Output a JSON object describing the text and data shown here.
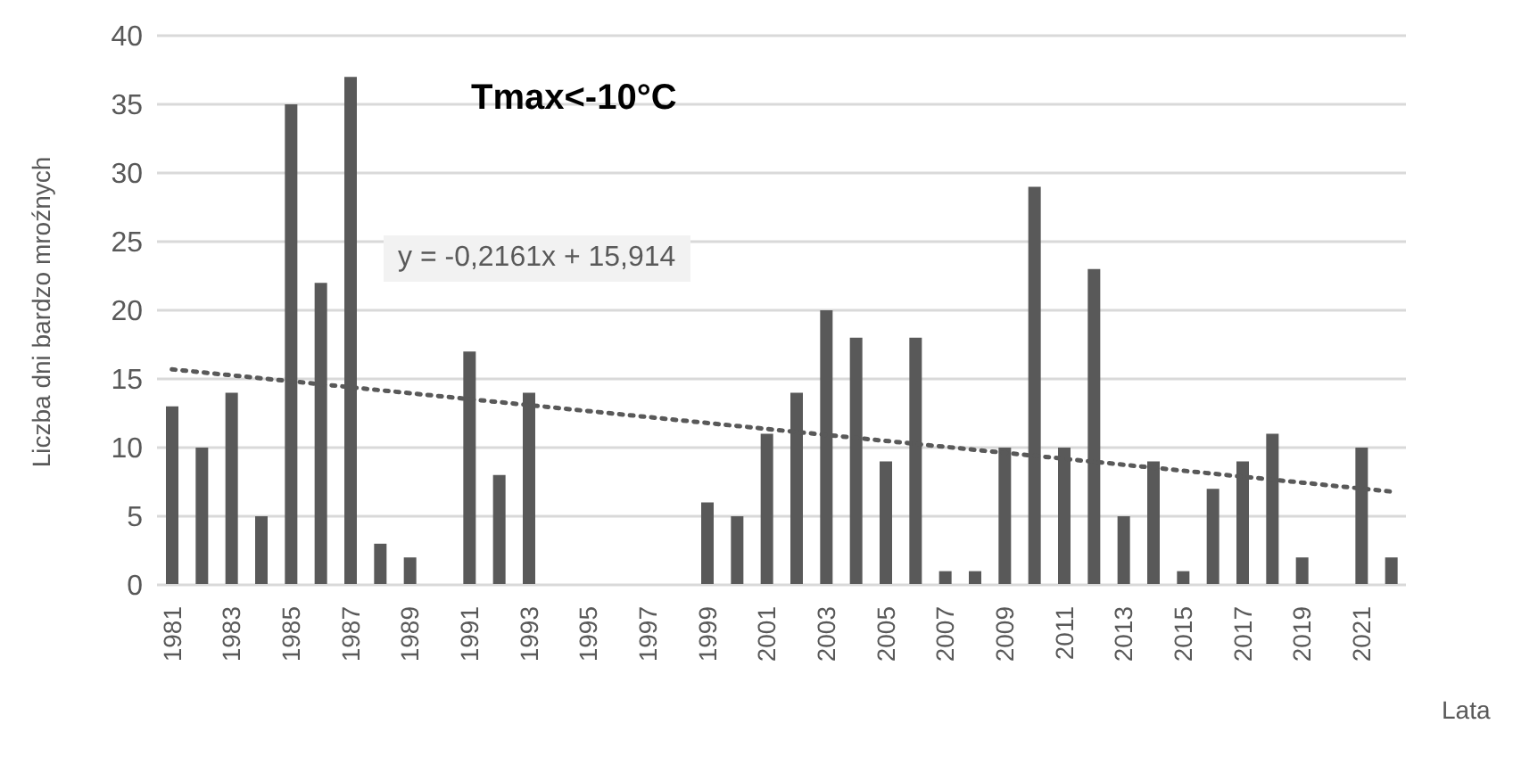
{
  "chart_data": {
    "type": "bar",
    "title": "Tmax<-10°C",
    "xlabel": "Lata",
    "ylabel": "Liczba dni bardzo mroźnych",
    "annotations": [
      "y = -0,2161x + 15,914"
    ],
    "categories": [
      "1981",
      null,
      "1983",
      null,
      "1985",
      null,
      "1987",
      null,
      "1989",
      null,
      "1991",
      null,
      "1993",
      null,
      "1995",
      null,
      "1997",
      null,
      "1999",
      null,
      "2001",
      null,
      "2003",
      null,
      "2005",
      null,
      "2007",
      null,
      "2009",
      null,
      "2011",
      null,
      "2013",
      null,
      "2015",
      null,
      "2017",
      null,
      "2019",
      null,
      "2021",
      null
    ],
    "series": [
      {
        "color": "#595959",
        "values": [
          13,
          10,
          14,
          5,
          35,
          22,
          37,
          3,
          2,
          0,
          17,
          8,
          14,
          0,
          0,
          0,
          0,
          0,
          6,
          5,
          11,
          14,
          20,
          18,
          9,
          18,
          1,
          1,
          10,
          29,
          10,
          23,
          5,
          9,
          1,
          7,
          9,
          11,
          2,
          0,
          10,
          2
        ]
      },
      {
        "type": "line",
        "color": "#595959",
        "line_style": "dotted",
        "values": [
          15.7,
          null,
          null,
          null,
          null,
          null,
          null,
          null,
          null,
          null,
          null,
          null,
          null,
          null,
          null,
          null,
          null,
          null,
          null,
          null,
          null,
          null,
          null,
          null,
          null,
          null,
          null,
          null,
          null,
          null,
          null,
          null,
          null,
          null,
          null,
          null,
          null,
          null,
          null,
          null,
          null,
          6.8
        ]
      }
    ],
    "ylim": [
      0,
      40
    ],
    "yticks": [
      0,
      5,
      10,
      15,
      20,
      25,
      30,
      35,
      40
    ],
    "grid": "y"
  }
}
